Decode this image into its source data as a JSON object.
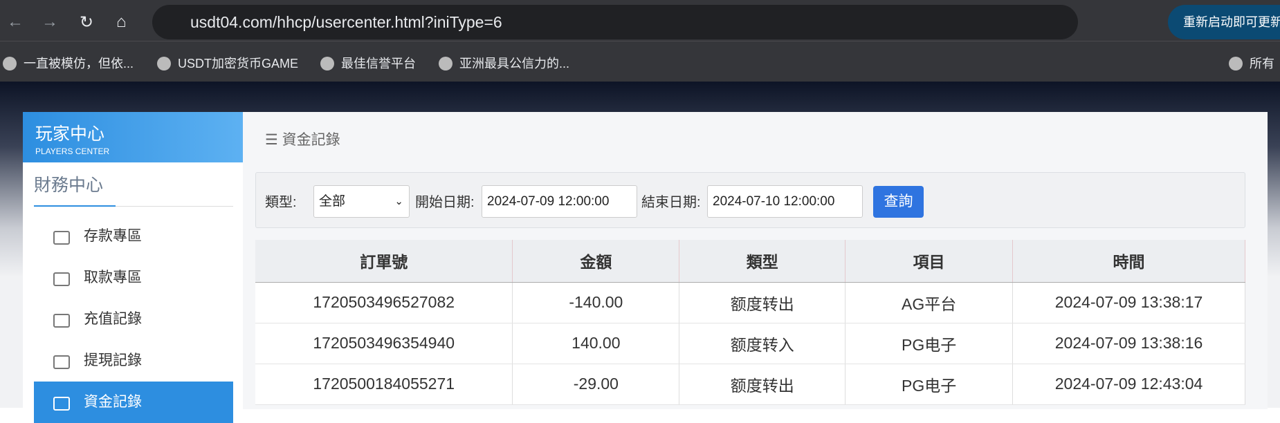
{
  "browser": {
    "url": "usdt04.com/hhcp/usercenter.html?iniType=6",
    "update_button": "重新启动即可更新",
    "bookmarks": [
      "一直被模仿，但依...",
      "USDT加密货币GAME",
      "最佳信誉平台",
      "亚洲最具公信力的...",
      "所有"
    ]
  },
  "sidebar": {
    "logo_title": "玩家中心",
    "logo_subtitle": "PLAYERS CENTER",
    "section": "財務中心",
    "menu": [
      "存款專區",
      "取款專區",
      "充值記錄",
      "提現記錄",
      "資金記錄"
    ]
  },
  "breadcrumb": "資金記錄",
  "filter": {
    "type_label": "類型:",
    "type_value": "全部",
    "start_label": "開始日期:",
    "start_value": "2024-07-09 12:00:00",
    "end_label": "結束日期:",
    "end_value": "2024-07-10 12:00:00",
    "button": "查詢"
  },
  "table": {
    "headers": [
      "訂單號",
      "金額",
      "類型",
      "項目",
      "時間"
    ],
    "rows": [
      [
        "1720503496527082",
        "-140.00",
        "额度转出",
        "AG平台",
        "2024-07-09 13:38:17"
      ],
      [
        "1720503496354940",
        "140.00",
        "额度转入",
        "PG电子",
        "2024-07-09 13:38:16"
      ],
      [
        "1720500184055271",
        "-29.00",
        "额度转出",
        "PG电子",
        "2024-07-09 12:43:04"
      ]
    ]
  }
}
